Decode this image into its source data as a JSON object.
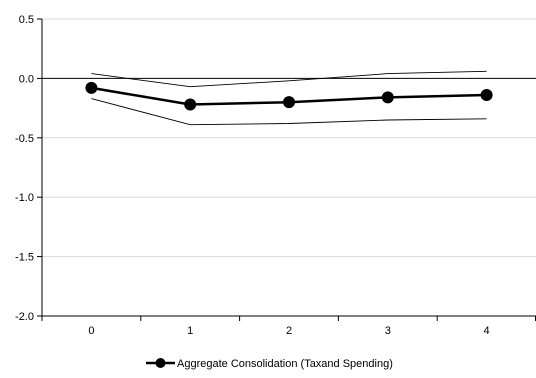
{
  "chart_data": {
    "type": "line",
    "title": "",
    "xlabel": "",
    "ylabel": "",
    "x": [
      0,
      1,
      2,
      3,
      4
    ],
    "x_tick_labels": [
      "0",
      "1",
      "2",
      "3",
      "4"
    ],
    "ylim": [
      -2.0,
      0.5
    ],
    "y_ticks": [
      -2.0,
      -1.5,
      -1.0,
      -0.5,
      0.0,
      0.5
    ],
    "y_tick_labels": [
      "-2.0",
      "-1.5",
      "-1.0",
      "-0.5",
      "0.0",
      "0.5"
    ],
    "grid": "horizontal",
    "zero_line": true,
    "legend_position": "bottom-center",
    "series": [
      {
        "name": "Aggregate Consolidation (Taxand Spending)",
        "role": "estimate",
        "values": [
          -0.08,
          -0.22,
          -0.2,
          -0.16,
          -0.14
        ],
        "color": "#000000",
        "marker": "circle"
      },
      {
        "role": "upper-band",
        "values": [
          0.04,
          -0.07,
          -0.02,
          0.04,
          0.06
        ],
        "color": "#000000"
      },
      {
        "role": "lower-band",
        "values": [
          -0.17,
          -0.39,
          -0.38,
          -0.35,
          -0.34
        ],
        "color": "#000000"
      }
    ]
  }
}
